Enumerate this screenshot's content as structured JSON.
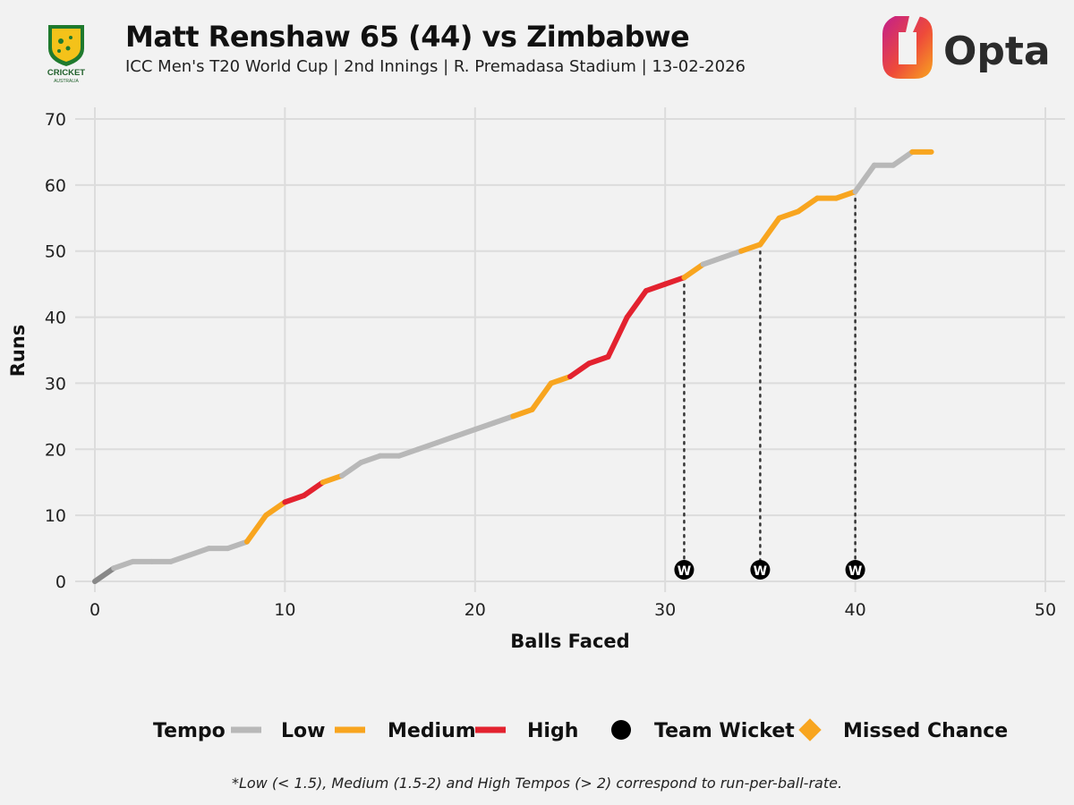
{
  "header": {
    "title": "Matt Renshaw 65 (44) vs Zimbabwe",
    "subtitle": "ICC Men's T20 World Cup | 2nd Innings | R. Premadasa Stadium | 13-02-2026",
    "left_logo_text": "CRICKET",
    "left_logo_subtext": "AUSTRALIA",
    "right_logo_text": "Opta"
  },
  "footnote": "*Low (< 1.5), Medium (1.5-2) and High Tempos (> 2) correspond to run-per-ball-rate.",
  "colors": {
    "background": "#f2f2f2",
    "grid": "#dcdcdc",
    "start": "#888888",
    "low": "#b8b8b8",
    "medium": "#f8a51f",
    "high": "#e3222f",
    "wicket": "#000000",
    "missed_chance": "#f8a51f"
  },
  "chart_data": {
    "type": "line",
    "title": "Matt Renshaw 65 (44) vs Zimbabwe",
    "xlabel": "Balls Faced",
    "ylabel": "Runs",
    "xlim": [
      0,
      50
    ],
    "ylim": [
      0,
      70
    ],
    "x_ticks": [
      0,
      10,
      20,
      30,
      40,
      50
    ],
    "y_ticks": [
      0,
      10,
      20,
      30,
      40,
      50,
      60,
      70
    ],
    "grid": true,
    "points": [
      {
        "x": 0,
        "y": 0
      },
      {
        "x": 1,
        "y": 2
      },
      {
        "x": 2,
        "y": 3
      },
      {
        "x": 3,
        "y": 3
      },
      {
        "x": 4,
        "y": 3
      },
      {
        "x": 5,
        "y": 4
      },
      {
        "x": 6,
        "y": 5
      },
      {
        "x": 7,
        "y": 5
      },
      {
        "x": 8,
        "y": 6
      },
      {
        "x": 9,
        "y": 10
      },
      {
        "x": 10,
        "y": 12
      },
      {
        "x": 11,
        "y": 13
      },
      {
        "x": 12,
        "y": 15
      },
      {
        "x": 13,
        "y": 16
      },
      {
        "x": 14,
        "y": 18
      },
      {
        "x": 15,
        "y": 19
      },
      {
        "x": 16,
        "y": 19
      },
      {
        "x": 17,
        "y": 20
      },
      {
        "x": 18,
        "y": 21
      },
      {
        "x": 19,
        "y": 22
      },
      {
        "x": 20,
        "y": 23
      },
      {
        "x": 21,
        "y": 24
      },
      {
        "x": 22,
        "y": 25
      },
      {
        "x": 23,
        "y": 26
      },
      {
        "x": 24,
        "y": 30
      },
      {
        "x": 25,
        "y": 31
      },
      {
        "x": 26,
        "y": 33
      },
      {
        "x": 27,
        "y": 34
      },
      {
        "x": 28,
        "y": 40
      },
      {
        "x": 29,
        "y": 44
      },
      {
        "x": 30,
        "y": 45
      },
      {
        "x": 31,
        "y": 46
      },
      {
        "x": 32,
        "y": 48
      },
      {
        "x": 33,
        "y": 49
      },
      {
        "x": 34,
        "y": 50
      },
      {
        "x": 35,
        "y": 51
      },
      {
        "x": 36,
        "y": 55
      },
      {
        "x": 37,
        "y": 56
      },
      {
        "x": 38,
        "y": 58
      },
      {
        "x": 39,
        "y": 58
      },
      {
        "x": 40,
        "y": 59
      },
      {
        "x": 41,
        "y": 63
      },
      {
        "x": 42,
        "y": 63
      },
      {
        "x": 43,
        "y": 65
      },
      {
        "x": 44,
        "y": 65
      }
    ],
    "segment_tempo": [
      "start",
      "low",
      "low",
      "low",
      "low",
      "low",
      "low",
      "low",
      "medium",
      "medium",
      "high",
      "high",
      "medium",
      "low",
      "low",
      "low",
      "low",
      "low",
      "low",
      "low",
      "low",
      "low",
      "medium",
      "medium",
      "medium",
      "high",
      "high",
      "high",
      "high",
      "high",
      "high",
      "medium",
      "low",
      "low",
      "medium",
      "medium",
      "medium",
      "medium",
      "medium",
      "medium",
      "low",
      "low",
      "low",
      "medium"
    ],
    "team_wickets": [
      {
        "ball": 31,
        "runs": 46,
        "label": "W"
      },
      {
        "ball": 35,
        "runs": 51,
        "label": "W"
      },
      {
        "ball": 40,
        "runs": 59,
        "label": "W"
      }
    ],
    "missed_chances": [],
    "legend": {
      "title": "Tempo",
      "position": "bottom",
      "items": [
        {
          "label": "Low",
          "kind": "line",
          "color_key": "low"
        },
        {
          "label": "Medium",
          "kind": "line",
          "color_key": "medium"
        },
        {
          "label": "High",
          "kind": "line",
          "color_key": "high"
        },
        {
          "label": "Team Wicket",
          "kind": "circle",
          "color_key": "wicket"
        },
        {
          "label": "Missed Chance",
          "kind": "diamond",
          "color_key": "missed_chance"
        }
      ]
    }
  }
}
